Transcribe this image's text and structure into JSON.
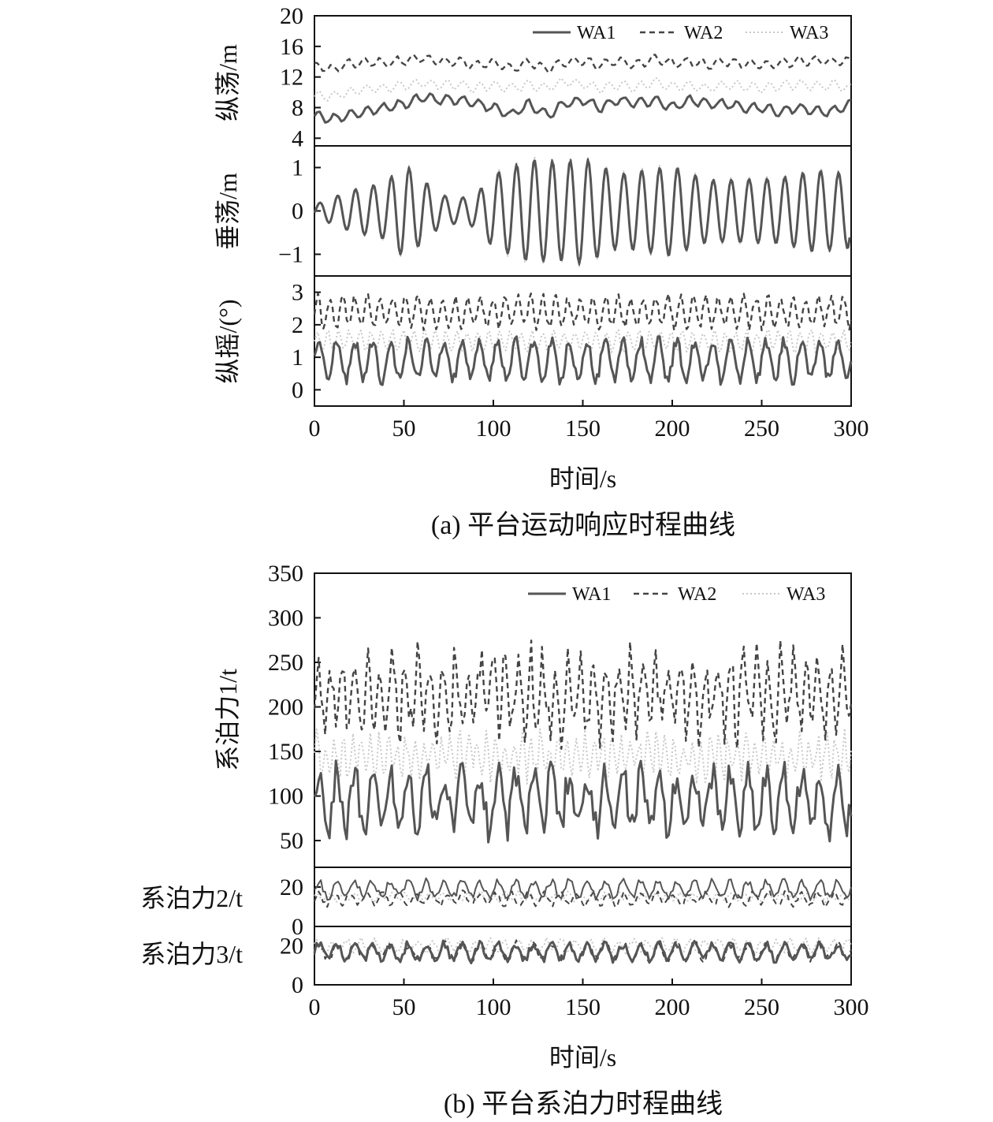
{
  "figure_a": {
    "caption": "(a) 平台运动响应时程曲线",
    "xlabel": "时间/s",
    "xticks": [
      "0",
      "50",
      "100",
      "150",
      "200",
      "250",
      "300"
    ],
    "legend": [
      "WA1",
      "WA2",
      "WA3"
    ],
    "panels": [
      {
        "ylabel": "纵荡/m",
        "yticks": [
          "20",
          "16",
          "12",
          "8",
          "4"
        ]
      },
      {
        "ylabel": "垂荡/m",
        "yticks": [
          "1",
          "0",
          "−1"
        ]
      },
      {
        "ylabel": "纵摇/(°)",
        "yticks": [
          "3",
          "2",
          "1",
          "0"
        ]
      }
    ]
  },
  "figure_b": {
    "caption": "(b) 平台系泊力时程曲线",
    "xlabel": "时间/s",
    "xticks": [
      "0",
      "50",
      "100",
      "150",
      "200",
      "250",
      "300"
    ],
    "legend": [
      "WA1",
      "WA2",
      "WA3"
    ],
    "panels": [
      {
        "ylabel": "系泊力1/t",
        "yticks": [
          "350",
          "300",
          "250",
          "200",
          "150",
          "100",
          "50"
        ]
      },
      {
        "ylabel": "系泊力2/t",
        "yticks": [
          "20",
          "0"
        ]
      },
      {
        "ylabel": "系泊力3/t",
        "yticks": [
          "20",
          "0"
        ]
      }
    ]
  },
  "colors": {
    "WA1": "#555555",
    "WA2": "#444444",
    "WA3": "#c8c8c8",
    "axis": "#111111"
  },
  "chart_data": [
    {
      "type": "line",
      "id": "surge",
      "title": "",
      "xlabel": "时间/s",
      "ylabel": "纵荡/m",
      "xlim": [
        0,
        300
      ],
      "ylim": [
        3,
        20
      ],
      "x": [
        0,
        10,
        20,
        30,
        40,
        50,
        60,
        70,
        80,
        90,
        100,
        110,
        120,
        130,
        140,
        150,
        160,
        170,
        180,
        190,
        200,
        210,
        220,
        230,
        240,
        250,
        260,
        270,
        280,
        290,
        300
      ],
      "series": [
        {
          "name": "WA1",
          "values": [
            7,
            6.5,
            7,
            7.5,
            8,
            8.5,
            9.3,
            9,
            9,
            8.5,
            8,
            7,
            8.5,
            7,
            8.5,
            9,
            8,
            9,
            8.5,
            9,
            8,
            9,
            8.5,
            8.5,
            8,
            8,
            7.5,
            8,
            7.5,
            7.5,
            8.5
          ]
        },
        {
          "name": "WA2",
          "values": [
            13.5,
            13,
            13.8,
            14,
            13.8,
            14.2,
            14.5,
            14,
            14,
            13.5,
            14,
            13,
            14,
            13,
            14,
            14,
            13.5,
            14.2,
            13.5,
            14.5,
            13.8,
            14,
            13.5,
            14,
            13.8,
            13.5,
            13.8,
            14,
            14.2,
            14,
            14
          ]
        },
        {
          "name": "WA3",
          "values": [
            9.5,
            9.5,
            10,
            10.5,
            10.5,
            11,
            11.2,
            11,
            11,
            10.5,
            11,
            10.5,
            11,
            10.5,
            11.5,
            11,
            10.5,
            11,
            10.5,
            11.5,
            10.8,
            11,
            10.5,
            11,
            10.8,
            10.5,
            10.8,
            11,
            10.8,
            11,
            10.5
          ]
        }
      ]
    },
    {
      "type": "line",
      "id": "heave",
      "title": "",
      "xlabel": "时间/s",
      "ylabel": "垂荡/m",
      "xlim": [
        0,
        300
      ],
      "ylim": [
        -1.5,
        1.5
      ],
      "series": [
        {
          "name": "WA1",
          "amplitude_envelope": [
            [
              0,
              0.15
            ],
            [
              20,
              0.5
            ],
            [
              40,
              0.7
            ],
            [
              50,
              1.15
            ],
            [
              60,
              0.8
            ],
            [
              70,
              0.4
            ],
            [
              80,
              0.3
            ],
            [
              90,
              0.4
            ],
            [
              100,
              0.9
            ],
            [
              120,
              1.25
            ],
            [
              140,
              1.2
            ],
            [
              150,
              1.3
            ],
            [
              170,
              0.9
            ],
            [
              200,
              1.1
            ],
            [
              220,
              0.75
            ],
            [
              260,
              0.8
            ],
            [
              280,
              1.0
            ],
            [
              300,
              0.9
            ]
          ],
          "period_s": 10
        },
        {
          "name": "WA2",
          "amplitude_envelope": [
            [
              0,
              0.15
            ],
            [
              20,
              0.5
            ],
            [
              40,
              0.7
            ],
            [
              50,
              1.15
            ],
            [
              60,
              0.8
            ],
            [
              70,
              0.4
            ],
            [
              80,
              0.3
            ],
            [
              90,
              0.4
            ],
            [
              100,
              0.9
            ],
            [
              120,
              1.25
            ],
            [
              140,
              1.2
            ],
            [
              150,
              1.3
            ],
            [
              170,
              0.9
            ],
            [
              200,
              1.1
            ],
            [
              220,
              0.75
            ],
            [
              260,
              0.8
            ],
            [
              280,
              1.0
            ],
            [
              300,
              0.9
            ]
          ],
          "period_s": 10
        },
        {
          "name": "WA3",
          "amplitude_envelope": [
            [
              0,
              0.15
            ],
            [
              20,
              0.5
            ],
            [
              40,
              0.7
            ],
            [
              50,
              1.15
            ],
            [
              60,
              0.8
            ],
            [
              70,
              0.4
            ],
            [
              80,
              0.3
            ],
            [
              90,
              0.4
            ],
            [
              100,
              0.9
            ],
            [
              120,
              1.25
            ],
            [
              140,
              1.2
            ],
            [
              150,
              1.3
            ],
            [
              170,
              0.9
            ],
            [
              200,
              1.1
            ],
            [
              220,
              0.75
            ],
            [
              260,
              0.8
            ],
            [
              280,
              1.0
            ],
            [
              300,
              0.9
            ]
          ],
          "period_s": 10
        }
      ]
    },
    {
      "type": "line",
      "id": "pitch",
      "title": "",
      "xlabel": "时间/s",
      "ylabel": "纵摇/(°)",
      "xlim": [
        0,
        300
      ],
      "ylim": [
        -0.5,
        3.5
      ],
      "series": [
        {
          "name": "WA1",
          "mean": 0.9,
          "amplitude": 0.6,
          "period_s": 10
        },
        {
          "name": "WA2",
          "mean": 2.4,
          "amplitude": 0.45,
          "period_s": 7
        },
        {
          "name": "WA3",
          "mean": 1.5,
          "amplitude": 0.3,
          "period_s": 6
        }
      ]
    },
    {
      "type": "line",
      "id": "mooring1",
      "title": "",
      "xlabel": "时间/s",
      "ylabel": "系泊力1/t",
      "xlim": [
        0,
        300
      ],
      "ylim": [
        20,
        350
      ],
      "series": [
        {
          "name": "WA1",
          "mean": 95,
          "amplitude": 30,
          "period_s": 10
        },
        {
          "name": "WA2",
          "mean": 215,
          "amplitude": 40,
          "period_s": 7
        },
        {
          "name": "WA3",
          "mean": 145,
          "amplitude": 20,
          "period_s": 5
        }
      ]
    },
    {
      "type": "line",
      "id": "mooring2",
      "title": "",
      "xlabel": "时间/s",
      "ylabel": "系泊力2/t",
      "xlim": [
        0,
        300
      ],
      "ylim": [
        0,
        30
      ],
      "series": [
        {
          "name": "WA1",
          "mean": 19,
          "amplitude": 4,
          "period_s": 10
        },
        {
          "name": "WA2",
          "mean": 14,
          "amplitude": 3,
          "period_s": 9
        },
        {
          "name": "WA3",
          "mean": 15,
          "amplitude": 2,
          "period_s": 7
        }
      ]
    },
    {
      "type": "line",
      "id": "mooring3",
      "title": "",
      "xlabel": "时间/s",
      "ylabel": "系泊力3/t",
      "xlim": [
        0,
        300
      ],
      "ylim": [
        0,
        30
      ],
      "series": [
        {
          "name": "WA1",
          "mean": 17,
          "amplitude": 4,
          "period_s": 10
        },
        {
          "name": "WA2",
          "mean": 17,
          "amplitude": 4,
          "period_s": 10
        },
        {
          "name": "WA3",
          "mean": 20,
          "amplitude": 3,
          "period_s": 8
        }
      ]
    }
  ]
}
